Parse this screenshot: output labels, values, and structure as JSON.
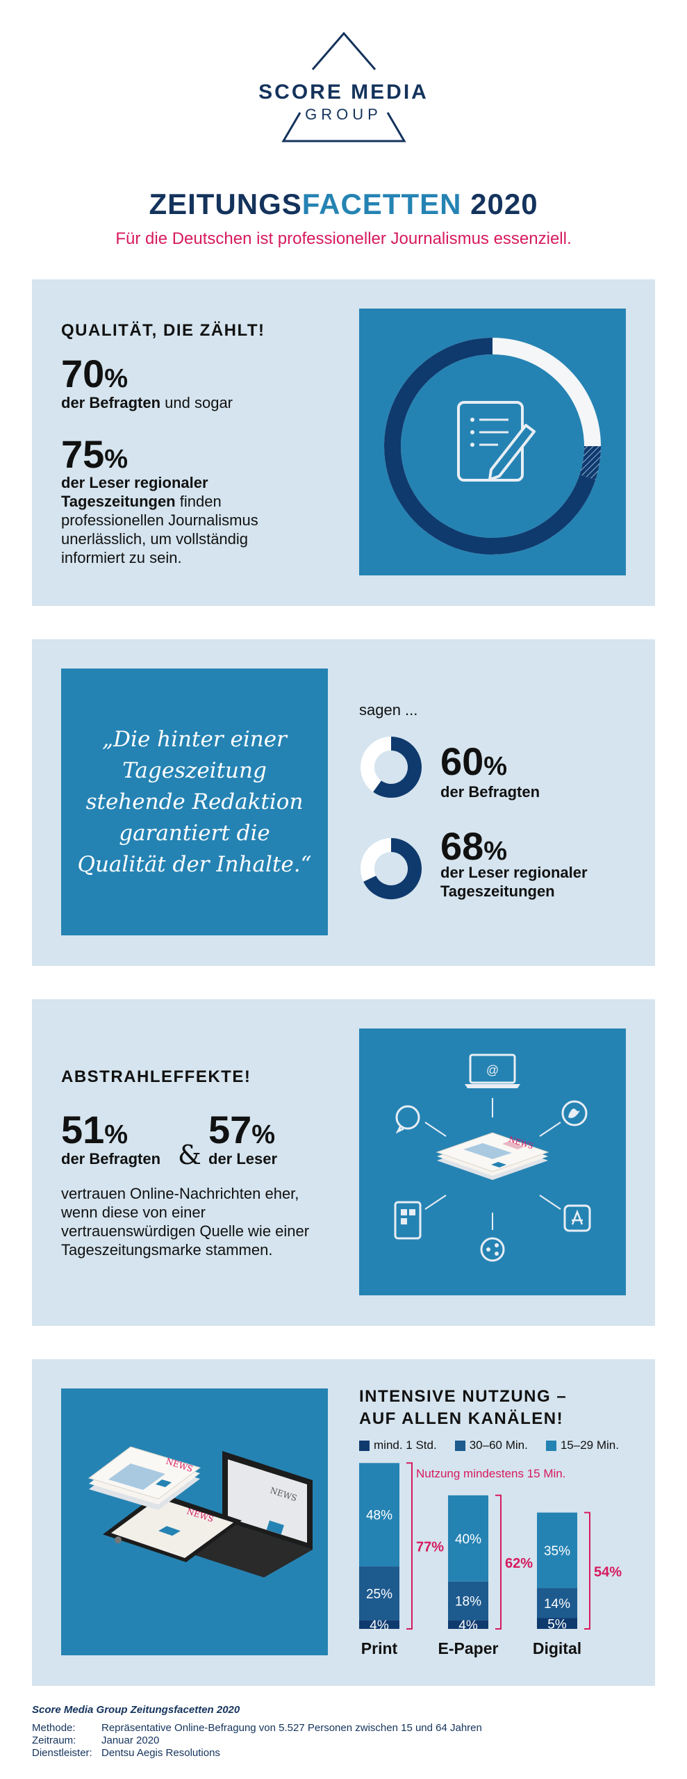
{
  "logo": {
    "line1": "SCORE MEDIA",
    "line2": "GROUP"
  },
  "header": {
    "title_part1": "ZEITUNGS",
    "title_part2": "FACETTEN",
    "title_part3": " 2020",
    "subtitle": "Für die Deutschen ist professioneller Journalismus essenziell."
  },
  "section1": {
    "kicker": "QUALITÄT, DIE ZÄHLT!",
    "stat1_number": "70",
    "stat1_pct": "%",
    "stat1_bold": "der Befragten",
    "stat1_rest": " und sogar",
    "stat2_number": "75",
    "stat2_pct": "%",
    "stat2_bold": "der Leser regionaler Tageszeitungen",
    "stat2_rest": " finden professionellen Journalismus unerlässlich, um vollständig informiert zu sein."
  },
  "section2": {
    "quote": "„Die hinter einer Tageszeitung stehende Redaktion garantiert die Qualität der Inhalte.“",
    "intro": "sagen ...",
    "stat1_number": "60",
    "stat1_pct": "%",
    "stat1_label": "der Befragten",
    "stat2_number": "68",
    "stat2_pct": "%",
    "stat2_label": "der Leser regionaler Tageszeitungen"
  },
  "section3": {
    "kicker": "ABSTRAHLEFFEKTE!",
    "stat1_number": "51",
    "stat1_pct": "%",
    "stat1_label": "der Befragten",
    "amp": "&",
    "stat2_number": "57",
    "stat2_pct": "%",
    "stat2_label": "der Leser",
    "body": "vertrauen Online-Nachrichten eher, wenn diese von einer vertrauenswürdigen Quelle wie einer Tageszeitungsmarke stammen.",
    "icon_news": "NEWS",
    "icon_at": "@"
  },
  "section4": {
    "title_line1": "INTENSIVE NUTZUNG –",
    "title_line2": "AUF ALLEN KANÄLEN!",
    "icon_news1": "NEWS",
    "icon_news2": "NEWS",
    "icon_news3": "NEWS",
    "legend": [
      {
        "label": "mind. 1 Std.",
        "color": "#0f3a6e"
      },
      {
        "label": "30–60 Min.",
        "color": "#1d5a8e"
      },
      {
        "label": "15–29 Min.",
        "color": "#2583b3"
      }
    ],
    "annotation": "Nutzung mindestens 15 Min."
  },
  "chart_data": [
    {
      "type": "pie",
      "title": "QUALITÄT, DIE ZÄHLT!",
      "categories": [
        "der Befragten",
        "der Leser regionaler Tageszeitungen"
      ],
      "values": [
        70,
        75
      ],
      "unit": "%"
    },
    {
      "type": "pie",
      "title": "sagen ...",
      "categories": [
        "der Befragten",
        "der Leser regionaler Tageszeitungen"
      ],
      "values": [
        60,
        68
      ],
      "unit": "%"
    },
    {
      "type": "bar",
      "title": "INTENSIVE NUTZUNG – AUF ALLEN KANÄLEN!",
      "stacked": true,
      "categories": [
        "Print",
        "E-Paper",
        "Digital"
      ],
      "series": [
        {
          "name": "mind. 1 Std.",
          "values": [
            4,
            4,
            5
          ],
          "labels": [
            "4%",
            "4%",
            "5%"
          ]
        },
        {
          "name": "30–60 Min.",
          "values": [
            25,
            18,
            14
          ],
          "labels": [
            "25%",
            "18%",
            "14%"
          ]
        },
        {
          "name": "15–29 Min.",
          "values": [
            48,
            40,
            35
          ],
          "labels": [
            "48%",
            "40%",
            "35%"
          ]
        }
      ],
      "totals": [
        77,
        62,
        54
      ],
      "total_labels": [
        "77%",
        "62%",
        "54%"
      ],
      "ylim": [
        0,
        80
      ]
    }
  ],
  "footer": {
    "title": "Score Media Group Zeitungsfacetten 2020",
    "rows": [
      {
        "key": "Methode:",
        "value": "Repräsentative Online-Befragung von 5.527 Personen zwischen 15 und 64 Jahren"
      },
      {
        "key": "Zeitraum:",
        "value": "Januar 2020"
      },
      {
        "key": "Dienstleister:",
        "value": "Dentsu Aegis Resolutions"
      }
    ]
  }
}
